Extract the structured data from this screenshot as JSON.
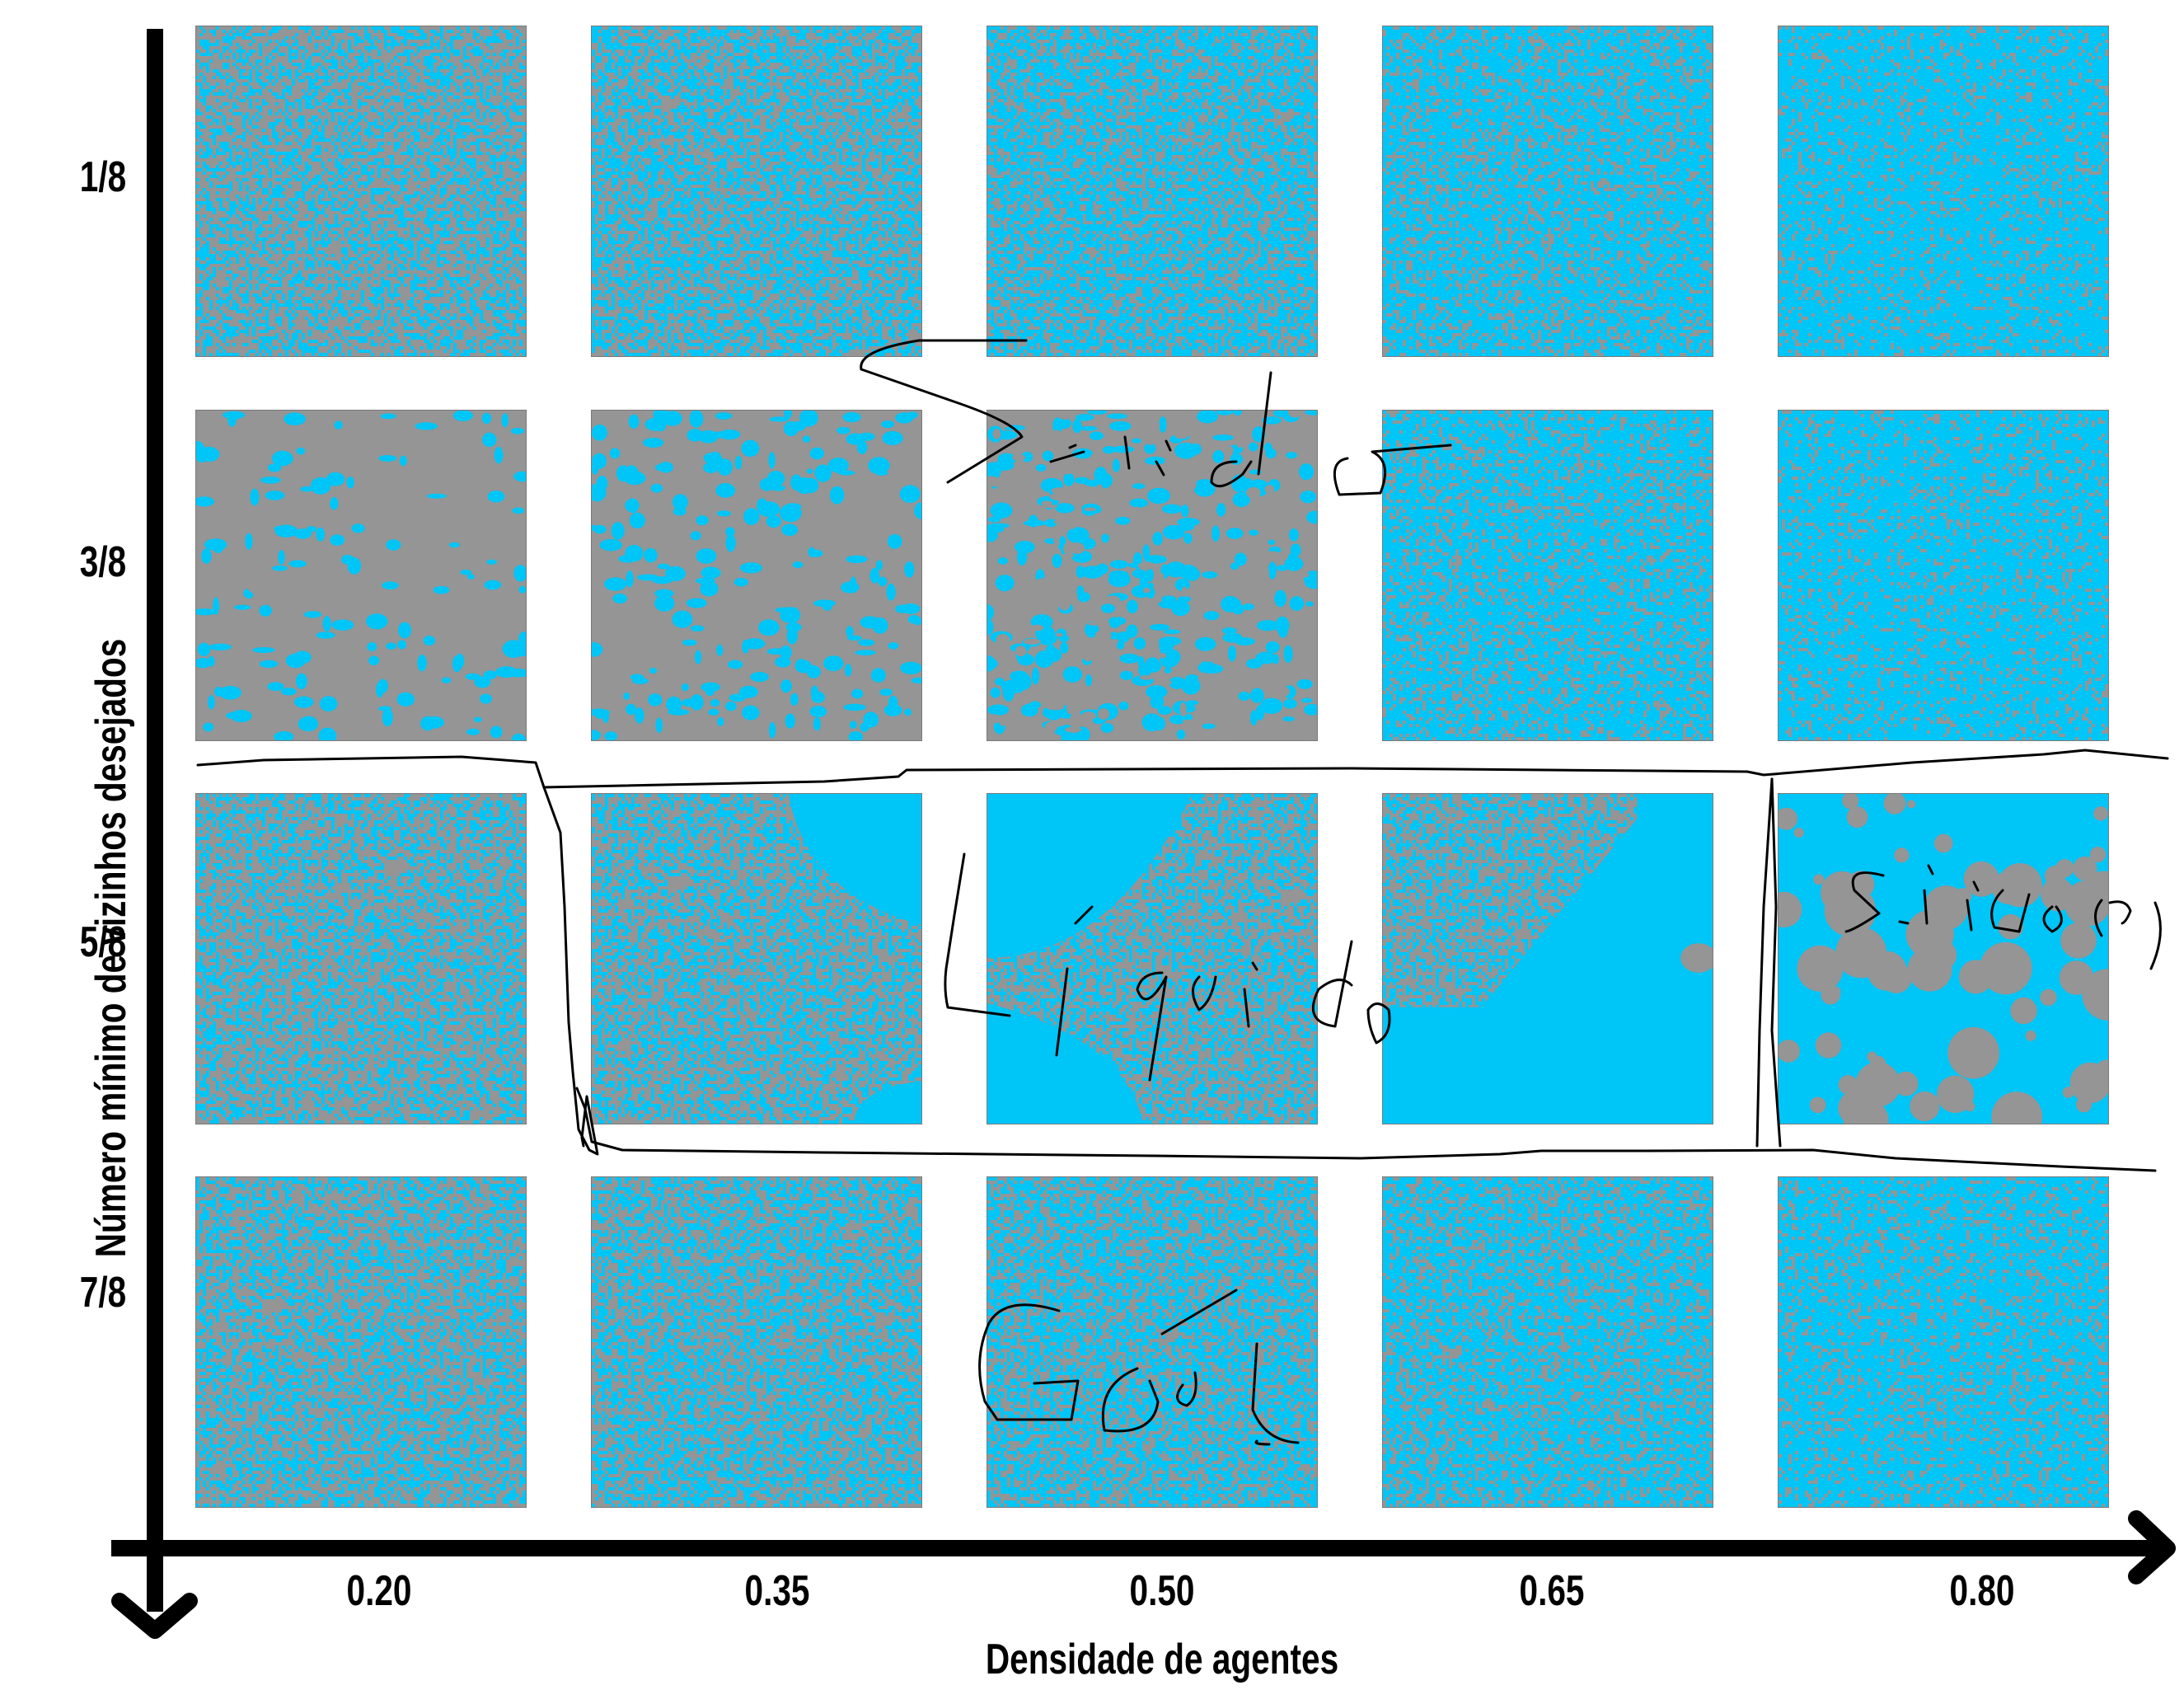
{
  "colors": {
    "agent_blue": "#00c5f7",
    "empty_gray": "#959595",
    "axis": "#000000",
    "ink": "#000000"
  },
  "x_axis": {
    "label": "Densidade de agentes",
    "ticks": [
      "0.20",
      "0.35",
      "0.50",
      "0.65",
      "0.80"
    ]
  },
  "y_axis": {
    "label": "Número mínimo de vizinhos desejados",
    "ticks": [
      "1/8",
      "3/8",
      "5/8",
      "7/8"
    ]
  },
  "grid": {
    "rows": 4,
    "cols": 5,
    "panels": [
      [
        {
          "pattern": "noise",
          "blue_fraction": 0.42
        },
        {
          "pattern": "noise",
          "blue_fraction": 0.52
        },
        {
          "pattern": "noise",
          "blue_fraction": 0.62
        },
        {
          "pattern": "noise",
          "blue_fraction": 0.72
        },
        {
          "pattern": "noise",
          "blue_fraction": 0.82
        }
      ],
      [
        {
          "pattern": "blobs",
          "blue_fraction": 0.2
        },
        {
          "pattern": "blobs",
          "blue_fraction": 0.38
        },
        {
          "pattern": "blobs",
          "blue_fraction": 0.55
        },
        {
          "pattern": "noise",
          "blue_fraction": 0.74
        },
        {
          "pattern": "noise",
          "blue_fraction": 0.82
        }
      ],
      [
        {
          "pattern": "noise",
          "blue_fraction": 0.42
        },
        {
          "pattern": "domain",
          "blue_fraction": 0.35,
          "variant": "a"
        },
        {
          "pattern": "domain",
          "blue_fraction": 0.5,
          "variant": "b"
        },
        {
          "pattern": "domain",
          "blue_fraction": 0.65,
          "variant": "c"
        },
        {
          "pattern": "droplets",
          "blue_fraction": 0.8
        }
      ],
      [
        {
          "pattern": "noise",
          "blue_fraction": 0.45
        },
        {
          "pattern": "noise",
          "blue_fraction": 0.5
        },
        {
          "pattern": "noise",
          "blue_fraction": 0.58
        },
        {
          "pattern": "noise",
          "blue_fraction": 0.68
        },
        {
          "pattern": "noise",
          "blue_fraction": 0.78
        }
      ]
    ]
  },
  "handwritten_annotations": [
    "Sólido",
    "Líquido",
    "Sólido (?)",
    "Gás"
  ]
}
